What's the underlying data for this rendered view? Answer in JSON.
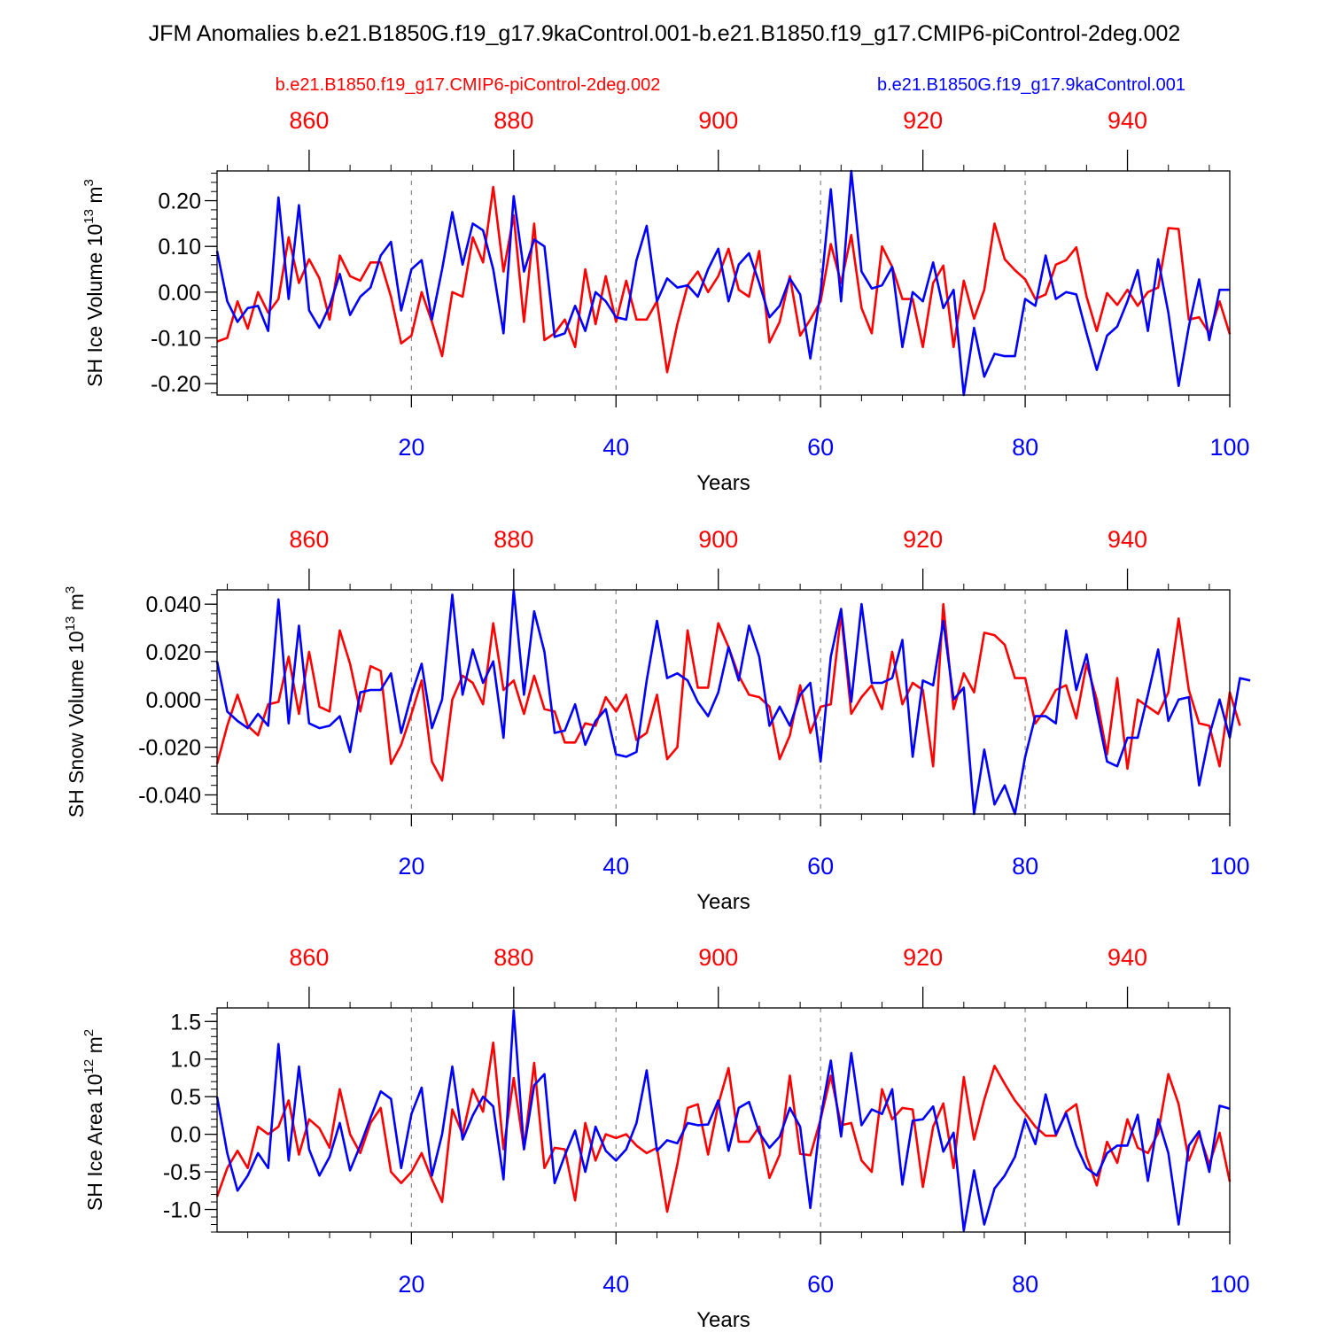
{
  "title": "JFM Anomalies b.e21.B1850G.f19_g17.9kaControl.001-b.e21.B1850.f19_g17.CMIP6-piControl-2deg.002",
  "legend": {
    "red_label": "b.e21.B1850.f19_g17.CMIP6-piControl-2deg.002",
    "blue_label": "b.e21.B1850G.f19_g17.9kaControl.001"
  },
  "colors": {
    "red": "#ff0000",
    "blue": "#0000ff",
    "axis": "#000000",
    "grid": "#888888"
  },
  "chart_data": [
    {
      "type": "line",
      "ylabel": "SH Ice Volume 10",
      "ylabel_exp": "13",
      "ylabel_unit": " m",
      "ylabel_unit_exp": "3",
      "xlabel": "Years",
      "xlim": [
        1,
        100
      ],
      "ylim": [
        -0.225,
        0.265
      ],
      "yticks": [
        -0.2,
        -0.1,
        0.0,
        0.1,
        0.2
      ],
      "ytick_labels": [
        "-0.20",
        "-0.10",
        "0.00",
        "0.10",
        "0.20"
      ],
      "yminor_step": 0.02,
      "xticks": [
        20,
        40,
        60,
        80,
        100
      ],
      "xtick_labels": [
        "20",
        "40",
        "60",
        "80",
        "100"
      ],
      "top_xlim": [
        851,
        950
      ],
      "top_xticks": [
        860,
        880,
        900,
        920,
        940
      ],
      "top_xtick_labels": [
        "860",
        "880",
        "900",
        "920",
        "940"
      ],
      "grid_x": [
        20,
        40,
        60,
        80
      ],
      "series": [
        {
          "name": "b.e21.B1850.f19_g17.CMIP6-piControl-2deg.002",
          "color": "#ff0000",
          "values": [
            -0.108,
            -0.1,
            -0.02,
            -0.08,
            0.0,
            -0.045,
            -0.015,
            0.12,
            0.02,
            0.072,
            0.03,
            -0.06,
            0.08,
            0.035,
            0.025,
            0.065,
            0.065,
            -0.01,
            -0.112,
            -0.095,
            0.0,
            -0.065,
            -0.14,
            0.0,
            -0.01,
            0.12,
            0.065,
            0.23,
            0.045,
            0.168,
            -0.065,
            0.15,
            -0.105,
            -0.09,
            -0.06,
            -0.12,
            0.05,
            -0.07,
            0.035,
            -0.065,
            0.025,
            -0.06,
            -0.06,
            -0.02,
            -0.175,
            -0.07,
            0.015,
            0.045,
            0.0,
            0.035,
            0.095,
            0.005,
            -0.01,
            0.09,
            -0.11,
            -0.065,
            0.035,
            -0.095,
            -0.06,
            -0.02,
            0.105,
            0.02,
            0.125,
            -0.035,
            -0.09,
            0.1,
            0.055,
            -0.015,
            -0.015,
            -0.12,
            0.02,
            0.058,
            -0.12,
            0.025,
            -0.058,
            0.005,
            0.15,
            0.072,
            0.048,
            0.028,
            -0.015,
            -0.005,
            0.06,
            0.07,
            0.098,
            -0.01,
            -0.085,
            -0.002,
            -0.028,
            0.005,
            -0.03,
            0.0,
            0.01,
            0.14,
            0.138,
            -0.06,
            -0.055,
            -0.09,
            -0.02,
            -0.092
          ]
        },
        {
          "name": "b.e21.B1850G.f19_g17.9kaControl.001",
          "color": "#0000ff",
          "values": [
            0.09,
            -0.02,
            -0.065,
            -0.035,
            -0.03,
            -0.085,
            0.207,
            -0.015,
            0.19,
            -0.04,
            -0.078,
            -0.03,
            0.04,
            -0.05,
            -0.01,
            0.01,
            0.08,
            0.11,
            -0.04,
            0.05,
            0.07,
            -0.06,
            0.05,
            0.175,
            0.06,
            0.15,
            0.135,
            0.05,
            -0.09,
            0.21,
            0.045,
            0.115,
            0.1,
            -0.098,
            -0.09,
            -0.03,
            -0.085,
            0.0,
            -0.02,
            -0.055,
            -0.06,
            0.07,
            0.145,
            -0.02,
            0.03,
            0.01,
            0.015,
            -0.01,
            0.05,
            0.095,
            -0.02,
            0.06,
            0.085,
            0.02,
            -0.055,
            -0.03,
            0.03,
            -0.005,
            -0.145,
            0.0,
            0.225,
            -0.02,
            0.265,
            0.045,
            0.008,
            0.015,
            0.055,
            -0.12,
            0.0,
            -0.02,
            0.065,
            -0.035,
            0.005,
            -0.225,
            -0.078,
            -0.185,
            -0.135,
            -0.14,
            -0.14,
            -0.015,
            -0.03,
            0.08,
            -0.015,
            0.0,
            -0.005,
            -0.09,
            -0.17,
            -0.095,
            -0.075,
            -0.02,
            0.048,
            -0.085,
            0.072,
            -0.045,
            -0.205,
            -0.075,
            0.028,
            -0.105,
            0.005,
            0.005
          ]
        }
      ]
    },
    {
      "type": "line",
      "ylabel": "SH Snow Volume 10",
      "ylabel_exp": "13",
      "ylabel_unit": " m",
      "ylabel_unit_exp": "3",
      "xlabel": "Years",
      "xlim": [
        1,
        100
      ],
      "ylim": [
        -0.048,
        0.046
      ],
      "yticks": [
        -0.04,
        -0.02,
        0.0,
        0.02,
        0.04
      ],
      "ytick_labels": [
        "-0.040",
        "-0.020",
        "0.000",
        "0.020",
        "0.040"
      ],
      "yminor_step": 0.004,
      "xticks": [
        20,
        40,
        60,
        80,
        100
      ],
      "xtick_labels": [
        "20",
        "40",
        "60",
        "80",
        "100"
      ],
      "top_xlim": [
        851,
        950
      ],
      "top_xticks": [
        860,
        880,
        900,
        920,
        940
      ],
      "top_xtick_labels": [
        "860",
        "880",
        "900",
        "920",
        "940"
      ],
      "grid_x": [
        20,
        40,
        60,
        80
      ],
      "series": [
        {
          "name": "b.e21.B1850.f19_g17.CMIP6-piControl-2deg.002",
          "color": "#ff0000",
          "values": [
            -0.027,
            -0.011,
            0.002,
            -0.011,
            -0.015,
            -0.002,
            -0.001,
            0.018,
            -0.006,
            0.02,
            -0.003,
            -0.005,
            0.029,
            0.015,
            -0.005,
            0.014,
            0.012,
            -0.027,
            -0.019,
            -0.006,
            0.008,
            -0.026,
            -0.034,
            0.0,
            0.01,
            0.007,
            -0.002,
            0.032,
            0.004,
            0.008,
            -0.006,
            0.01,
            -0.004,
            -0.005,
            -0.018,
            -0.018,
            -0.01,
            -0.011,
            0.001,
            -0.005,
            0.002,
            -0.017,
            -0.014,
            0.002,
            -0.025,
            -0.02,
            0.029,
            0.005,
            0.005,
            0.032,
            0.022,
            0.01,
            0.002,
            0.001,
            -0.003,
            -0.025,
            -0.015,
            0.006,
            -0.014,
            -0.003,
            -0.002,
            0.036,
            -0.006,
            0.001,
            0.006,
            -0.004,
            0.02,
            -0.002,
            0.007,
            0.004,
            -0.028,
            0.04,
            -0.004,
            0.011,
            0.003,
            0.028,
            0.027,
            0.023,
            0.009,
            0.009,
            -0.01,
            -0.004,
            0.004,
            0.006,
            -0.008,
            0.015,
            0.0,
            -0.023,
            0.009,
            -0.029,
            0.0,
            -0.003,
            -0.006,
            0.003,
            0.034,
            0.004,
            -0.01,
            -0.011,
            -0.028,
            0.003,
            -0.011
          ]
        },
        {
          "name": "b.e21.B1850G.f19_g17.9kaControl.001",
          "color": "#0000ff",
          "values": [
            0.016,
            -0.005,
            -0.009,
            -0.012,
            -0.006,
            -0.011,
            0.042,
            -0.01,
            0.031,
            -0.01,
            -0.012,
            -0.011,
            -0.007,
            -0.022,
            0.003,
            0.004,
            0.004,
            0.011,
            -0.014,
            0.002,
            0.015,
            -0.012,
            0.0,
            0.044,
            0.002,
            0.021,
            0.007,
            0.016,
            -0.016,
            0.046,
            0.002,
            0.037,
            0.02,
            -0.014,
            -0.013,
            -0.002,
            -0.019,
            -0.009,
            -0.004,
            -0.023,
            -0.024,
            -0.022,
            0.008,
            0.033,
            0.009,
            0.011,
            0.008,
            -0.001,
            -0.007,
            0.003,
            0.022,
            0.008,
            0.031,
            0.018,
            -0.011,
            -0.003,
            -0.011,
            0.002,
            0.007,
            -0.026,
            0.018,
            0.038,
            -0.001,
            0.04,
            0.007,
            0.007,
            0.009,
            0.025,
            -0.024,
            0.008,
            0.006,
            0.033,
            0.0,
            0.005,
            -0.048,
            -0.021,
            -0.044,
            -0.036,
            -0.048,
            -0.024,
            -0.007,
            -0.007,
            -0.01,
            0.029,
            0.004,
            0.019,
            -0.005,
            -0.026,
            -0.028,
            -0.016,
            -0.016,
            0.002,
            0.021,
            -0.009,
            0.0,
            0.001,
            -0.036,
            -0.015,
            0.0,
            -0.016,
            0.009,
            0.008
          ]
        }
      ]
    },
    {
      "type": "line",
      "ylabel": "SH Ice Area 10",
      "ylabel_exp": "12",
      "ylabel_unit": " m",
      "ylabel_unit_exp": "2",
      "xlabel": "Years",
      "xlim": [
        1,
        100
      ],
      "ylim": [
        -1.3,
        1.68
      ],
      "yticks": [
        -1.0,
        -0.5,
        0.0,
        0.5,
        1.0,
        1.5
      ],
      "ytick_labels": [
        "-1.0",
        "-0.5",
        "0.0",
        "0.5",
        "1.0",
        "1.5"
      ],
      "yminor_step": 0.1,
      "xticks": [
        20,
        40,
        60,
        80,
        100
      ],
      "xtick_labels": [
        "20",
        "40",
        "60",
        "80",
        "100"
      ],
      "top_xlim": [
        851,
        950
      ],
      "top_xticks": [
        860,
        880,
        900,
        920,
        940
      ],
      "top_xtick_labels": [
        "860",
        "880",
        "900",
        "920",
        "940"
      ],
      "grid_x": [
        20,
        40,
        60,
        80
      ],
      "series": [
        {
          "name": "b.e21.B1850.f19_g17.CMIP6-piControl-2deg.002",
          "color": "#ff0000",
          "values": [
            -0.83,
            -0.45,
            -0.22,
            -0.45,
            0.1,
            0.0,
            0.1,
            0.45,
            -0.27,
            0.2,
            0.08,
            -0.18,
            0.6,
            0.0,
            -0.25,
            0.15,
            0.35,
            -0.5,
            -0.65,
            -0.5,
            -0.25,
            -0.6,
            -0.9,
            0.33,
            0.0,
            0.6,
            0.3,
            1.22,
            -0.2,
            0.75,
            -0.2,
            0.95,
            -0.45,
            -0.18,
            -0.2,
            -0.88,
            0.15,
            -0.35,
            0.0,
            -0.05,
            0.0,
            -0.15,
            -0.25,
            -0.18,
            -1.03,
            -0.4,
            0.35,
            0.4,
            -0.27,
            0.4,
            0.88,
            -0.1,
            -0.1,
            0.1,
            -0.58,
            -0.27,
            0.78,
            -0.26,
            -0.28,
            0.2,
            0.78,
            0.12,
            0.15,
            -0.35,
            -0.5,
            0.6,
            0.2,
            0.35,
            0.33,
            -0.7,
            0.1,
            0.41,
            -0.45,
            0.76,
            -0.07,
            0.46,
            0.91,
            0.67,
            0.45,
            0.28,
            0.1,
            -0.02,
            -0.02,
            0.3,
            0.4,
            -0.3,
            -0.68,
            -0.1,
            -0.38,
            0.2,
            -0.18,
            -0.25,
            0.02,
            0.8,
            0.4,
            -0.35,
            0.0,
            -0.4,
            0.02,
            -0.63
          ]
        },
        {
          "name": "b.e21.B1850G.f19_g17.9kaControl.001",
          "color": "#0000ff",
          "values": [
            0.5,
            -0.25,
            -0.75,
            -0.55,
            -0.25,
            -0.45,
            1.2,
            -0.35,
            0.9,
            -0.2,
            -0.55,
            -0.3,
            0.15,
            -0.48,
            -0.15,
            0.22,
            0.57,
            0.47,
            -0.45,
            0.27,
            0.62,
            -0.55,
            0.0,
            0.9,
            -0.07,
            0.25,
            0.5,
            0.37,
            -0.6,
            1.65,
            -0.2,
            0.65,
            0.8,
            -0.65,
            -0.28,
            0.05,
            -0.5,
            0.1,
            -0.22,
            -0.35,
            -0.2,
            0.15,
            0.85,
            -0.22,
            -0.08,
            -0.12,
            0.15,
            0.12,
            0.13,
            0.45,
            -0.22,
            0.35,
            0.43,
            0.02,
            -0.18,
            -0.03,
            0.35,
            0.1,
            -0.98,
            0.22,
            0.98,
            -0.03,
            1.08,
            0.12,
            0.33,
            0.27,
            0.6,
            -0.67,
            0.18,
            0.2,
            0.37,
            -0.23,
            0.02,
            -1.28,
            -0.48,
            -1.2,
            -0.72,
            -0.55,
            -0.3,
            0.2,
            -0.13,
            0.53,
            0.0,
            0.28,
            -0.15,
            -0.45,
            -0.55,
            -0.25,
            -0.15,
            -0.15,
            0.26,
            -0.62,
            0.2,
            -0.25,
            -1.2,
            -0.15,
            0.04,
            -0.5,
            0.38,
            0.34
          ]
        }
      ]
    }
  ]
}
